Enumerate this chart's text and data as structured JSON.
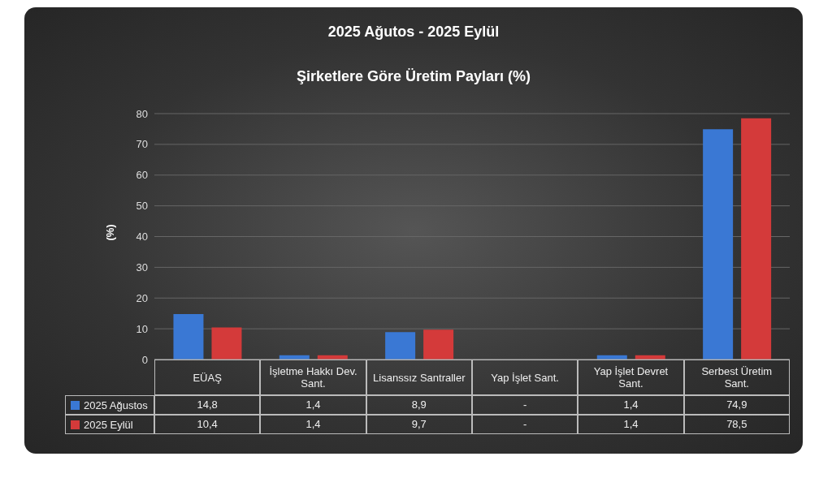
{
  "chart_data": {
    "type": "bar",
    "title": "2025 Ağutos - 2025 Eylül",
    "subtitle": "Şirketlere Göre Üretim Payları (%)",
    "ylabel": "(%)",
    "categories": [
      "EÜAŞ",
      "İşletme Hakkı Dev. Sant.",
      "Lisanssız Santraller",
      "Yap İşlet Sant.",
      "Yap İşlet Devret Sant.",
      "Serbest Üretim Sant."
    ],
    "series": [
      {
        "name": "2025 Ağustos",
        "color": "#3a78d4",
        "values": [
          14.8,
          1.4,
          8.9,
          null,
          1.4,
          74.9
        ],
        "value_labels": [
          "14,8",
          "1,4",
          "8,9",
          "-",
          "1,4",
          "74,9"
        ]
      },
      {
        "name": "2025 Eylül",
        "color": "#d43a3a",
        "values": [
          10.4,
          1.4,
          9.7,
          null,
          1.4,
          78.5
        ],
        "value_labels": [
          "10,4",
          "1,4",
          "9,7",
          "-",
          "1,4",
          "78,5"
        ]
      }
    ],
    "ylim": [
      0,
      80
    ],
    "yticks": [
      0,
      10,
      20,
      30,
      40,
      50,
      60,
      70,
      80
    ],
    "grid": "y",
    "legend": "bottom"
  }
}
